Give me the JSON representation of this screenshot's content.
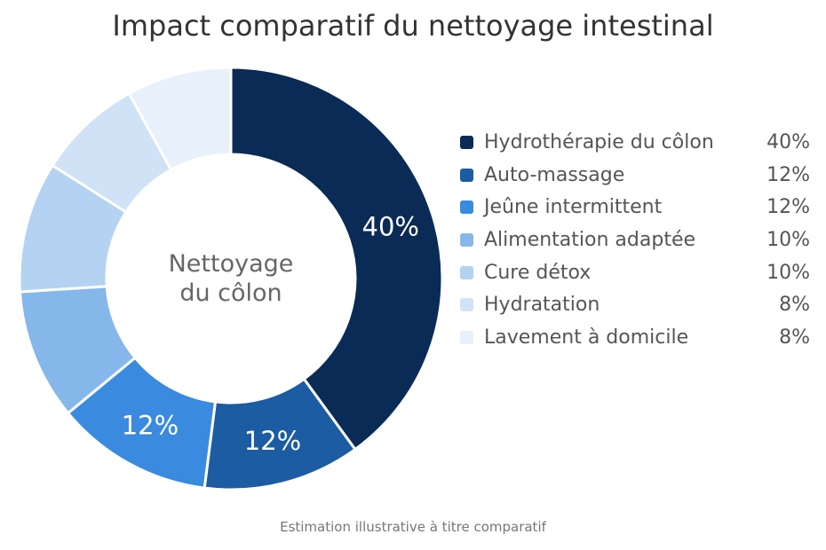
{
  "chart_data": {
    "type": "pie",
    "title": "Impact comparatif du nettoyage intestinal",
    "center_label": [
      "Nettoyage",
      "du côlon"
    ],
    "footnote": "Estimation illustrative à titre comparatif",
    "legend_position": "right",
    "categories": [
      "Hydrothérapie du côlon",
      "Auto-massage",
      "Jeûne intermittent",
      "Alimentation adaptée",
      "Cure détox",
      "Hydratation",
      "Lavement à domicile"
    ],
    "values": [
      40,
      12,
      12,
      10,
      10,
      8,
      8
    ],
    "value_labels": [
      "40%",
      "12%",
      "12%",
      "10%",
      "10%",
      "8%",
      "8%"
    ],
    "colors": [
      "#0a2b55",
      "#1b5ca3",
      "#3a8ae0",
      "#86b7eb",
      "#b4d2f1",
      "#d0e2f5",
      "#e7f0fb"
    ]
  }
}
